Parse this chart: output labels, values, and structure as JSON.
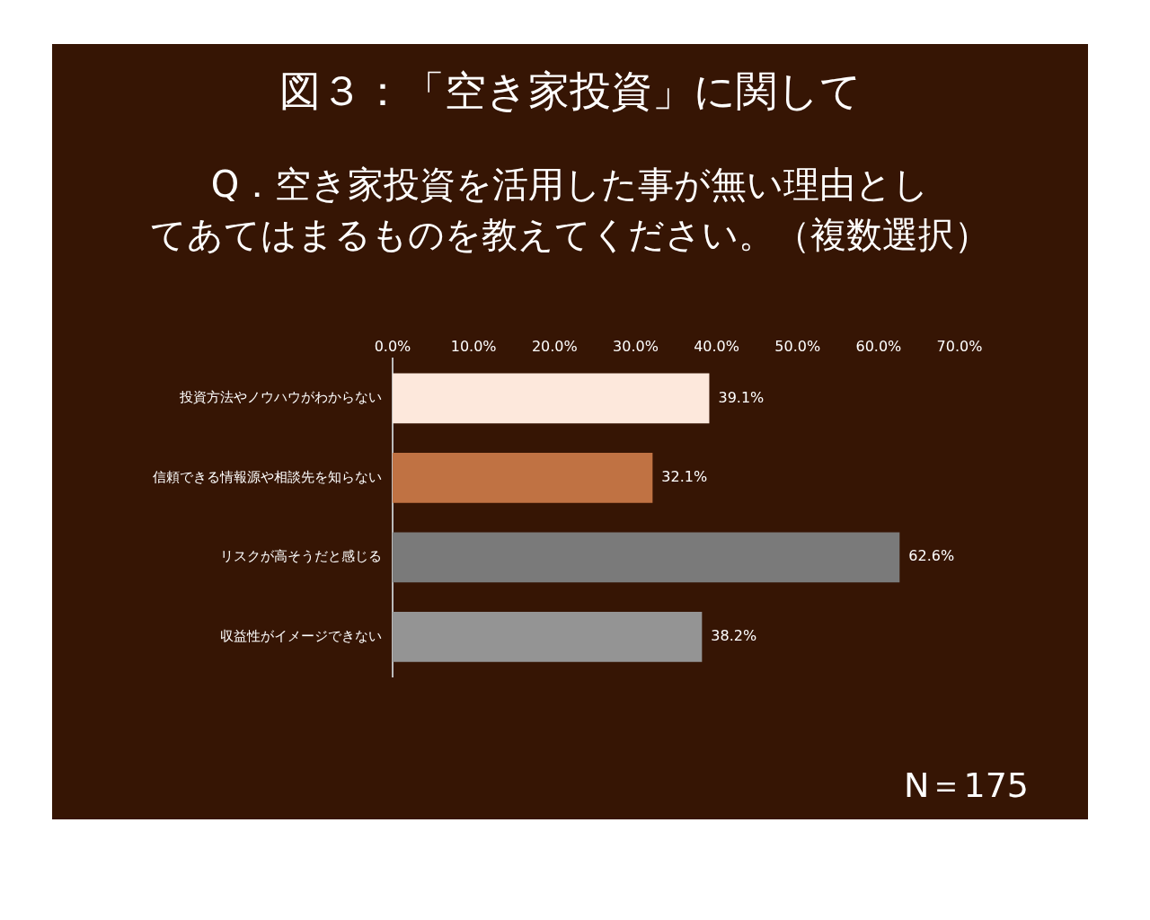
{
  "chart_data": {
    "type": "bar",
    "orientation": "horizontal",
    "title": "図３：「空き家投資」に関して",
    "subtitle": "Q．空き家投資を活用した事が無い理由としてあてはまるものを教えてください。（複数選択）",
    "categories": [
      "投資方法やノウハウがわからない",
      "信頼できる情報源や相談先を知らない",
      "リスクが高そうだと感じる",
      "収益性がイメージできない"
    ],
    "values": [
      39.1,
      32.1,
      62.6,
      38.2
    ],
    "colors": [
      "#fde8dc",
      "#c07243",
      "#7a7a7a",
      "#949494"
    ],
    "value_labels": [
      "39.1%",
      "32.1%",
      "62.6%",
      "38.2%"
    ],
    "xlim": [
      0,
      70
    ],
    "xticks": [
      {
        "value": 0,
        "label": "0.0%"
      },
      {
        "value": 10,
        "label": "10.0%"
      },
      {
        "value": 20,
        "label": "20.0%"
      },
      {
        "value": 30,
        "label": "30.0%"
      },
      {
        "value": 40,
        "label": "40.0%"
      },
      {
        "value": 50,
        "label": "50.0%"
      },
      {
        "value": 60,
        "label": "60.0%"
      },
      {
        "value": 70,
        "label": "70.0%"
      }
    ],
    "grid": false,
    "legend": false,
    "annotations": [
      "N＝175"
    ]
  }
}
